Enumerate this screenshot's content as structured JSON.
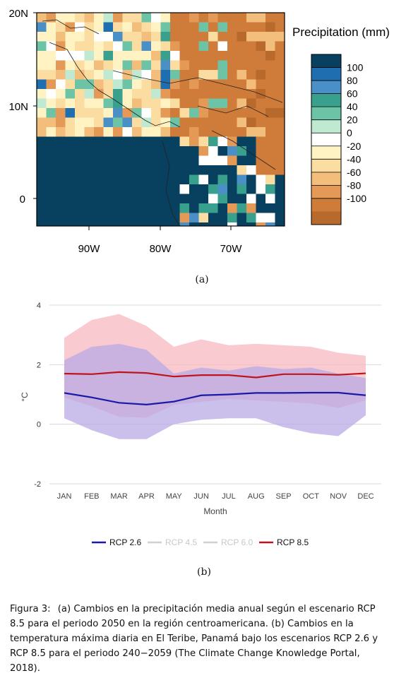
{
  "panel_a": {
    "label": "(a)",
    "y_ticks": [
      "20N",
      "10N",
      "0"
    ],
    "x_ticks": [
      "90W",
      "80W",
      "70W"
    ],
    "legend_title": "Precipitation (mm)",
    "legend_levels": [
      "100",
      "80",
      "60",
      "40",
      "20",
      "0",
      "-20",
      "-40",
      "-60",
      "-80",
      "-100"
    ],
    "legend_colors": [
      "#08405f",
      "#1f6fb0",
      "#4a90c6",
      "#3aa08e",
      "#6dc3a6",
      "#bfe9d0",
      "#ffffff",
      "#fff3c4",
      "#fbdca1",
      "#f3bd7c",
      "#e49a56",
      "#cf7c3a",
      "#b8692c"
    ]
  },
  "panel_b": {
    "label": "(b)",
    "chart_data": {
      "type": "line",
      "categories": [
        "JAN",
        "FEB",
        "MAR",
        "APR",
        "MAY",
        "JUN",
        "JUL",
        "AUG",
        "SEP",
        "OCT",
        "NOV",
        "DEC"
      ],
      "xlabel": "Month",
      "ylabel": "°C",
      "ylim": [
        -2,
        4
      ],
      "yticks": [
        "4",
        "2",
        "0",
        "-2"
      ],
      "grid": true,
      "legend_position": "bottom",
      "series": [
        {
          "name": "RCP 2.6",
          "color": "#1a1aa8",
          "active": true,
          "values": [
            1.05,
            0.9,
            0.72,
            0.66,
            0.76,
            0.97,
            1.0,
            1.05,
            1.05,
            1.06,
            1.06,
            0.97
          ],
          "band_low": [
            0.2,
            -0.2,
            -0.5,
            -0.5,
            0.0,
            0.15,
            0.2,
            0.2,
            -0.1,
            -0.3,
            -0.4,
            0.3
          ],
          "band_high": [
            2.15,
            2.6,
            2.7,
            2.5,
            1.7,
            1.9,
            1.8,
            1.95,
            1.85,
            1.9,
            1.7,
            1.55
          ],
          "band_color": "#b9a9e6"
        },
        {
          "name": "RCP 4.5",
          "color": "#d0d0d0",
          "active": false
        },
        {
          "name": "RCP 6.0",
          "color": "#d0d0d0",
          "active": false
        },
        {
          "name": "RCP 8.5",
          "color": "#c0141c",
          "active": true,
          "values": [
            1.7,
            1.68,
            1.75,
            1.72,
            1.6,
            1.65,
            1.65,
            1.57,
            1.68,
            1.68,
            1.66,
            1.71
          ],
          "band_low": [
            0.9,
            0.6,
            0.25,
            0.22,
            0.65,
            0.75,
            0.85,
            0.8,
            0.75,
            0.7,
            0.55,
            0.8
          ],
          "band_high": [
            2.9,
            3.5,
            3.7,
            3.3,
            2.6,
            2.85,
            2.65,
            2.7,
            2.65,
            2.6,
            2.4,
            2.3
          ],
          "band_color": "#f7b8c0"
        }
      ]
    }
  },
  "caption": {
    "label": "Figura 3:",
    "text": "(a) Cambios en la precipitación media anual según el escenario RCP 8.5 para el periodo 2050 en la región centroamericana. (b) Cambios en la temperatura máxima diaria en El Teribe, Panamá bajo los escenarios RCP 2.6 y RCP 8.5 para el periodo 240−2059 (The Climate Change Knowledge Portal, 2018)."
  }
}
